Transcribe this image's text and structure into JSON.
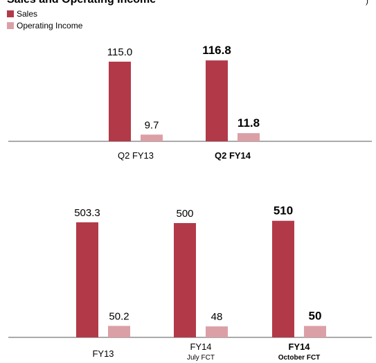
{
  "title": "Sales and Operating Income",
  "corner_mark": ")",
  "colors": {
    "sales": "#b23a48",
    "operating_income": "#dba0a6",
    "axis": "#555555",
    "text": "#000000"
  },
  "chart_data": [
    {
      "type": "bar",
      "categories": [
        {
          "label": "Q2 FY13",
          "sublabel": "",
          "bold": false
        },
        {
          "label": "Q2 FY14",
          "sublabel": "",
          "bold": true
        }
      ],
      "series": [
        {
          "name": "Sales",
          "values": [
            115.0,
            116.8
          ],
          "labels": [
            "115.0",
            "116.8"
          ]
        },
        {
          "name": "Operating Income",
          "values": [
            9.7,
            11.8
          ],
          "labels": [
            "9.7",
            "11.8"
          ]
        }
      ],
      "legend": "top-left"
    },
    {
      "type": "bar",
      "categories": [
        {
          "label": "FY13",
          "sublabel": "",
          "bold": false
        },
        {
          "label": "FY14",
          "sublabel": "July FCT",
          "bold": false
        },
        {
          "label": "FY14",
          "sublabel": "October FCT",
          "bold": true
        }
      ],
      "series": [
        {
          "name": "Sales",
          "values": [
            503.3,
            500,
            510
          ],
          "labels": [
            "503.3",
            "500",
            "510"
          ]
        },
        {
          "name": "Operating Income",
          "values": [
            50.2,
            48,
            50
          ],
          "labels": [
            "50.2",
            "48",
            "50"
          ]
        }
      ]
    }
  ]
}
